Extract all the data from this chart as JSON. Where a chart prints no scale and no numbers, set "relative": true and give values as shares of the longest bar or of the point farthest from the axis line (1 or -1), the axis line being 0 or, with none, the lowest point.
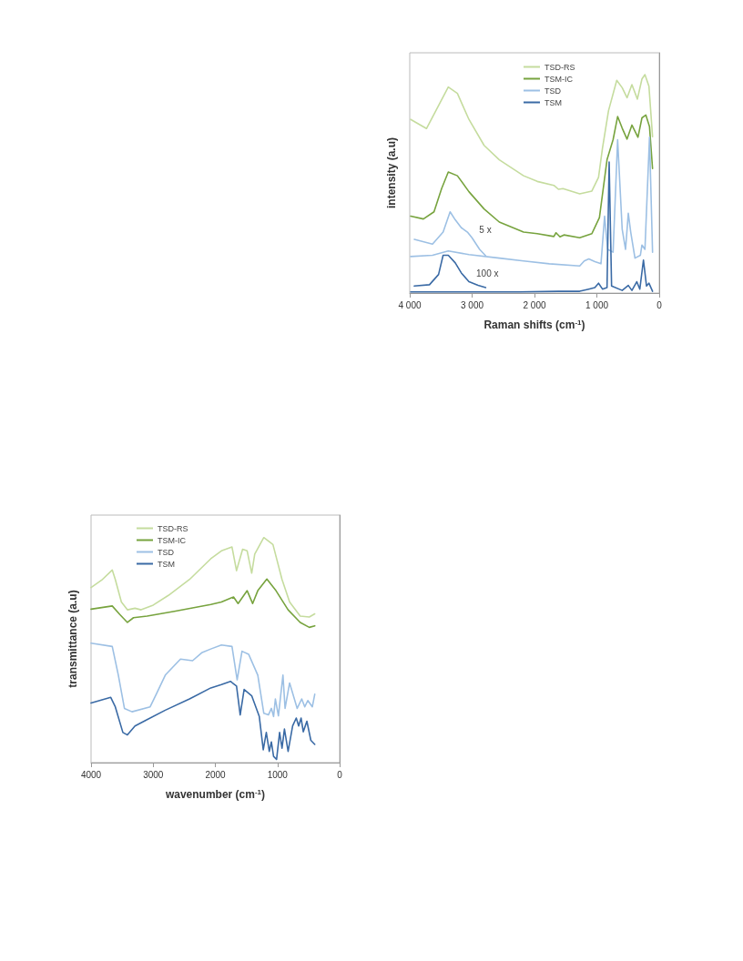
{
  "chart_data": [
    {
      "type": "line",
      "relative": true,
      "xlabel": "Raman shifts (cm$^{-1}$)",
      "ylabel": "intensity (a.u)",
      "xlim": [
        4000,
        0
      ],
      "xticks": [
        {
          "value": 4000,
          "label": "4 000"
        },
        {
          "value": 3000,
          "label": "3 000"
        },
        {
          "value": 2000,
          "label": "2 000"
        },
        {
          "value": 1000,
          "label": "1 000"
        },
        0
      ],
      "legend": "top",
      "marker": "none",
      "line_style": "solid",
      "annotations": [
        "5 x",
        "100 x"
      ],
      "series": [
        {
          "name": "TSD-RS",
          "color": "#c5dc9e",
          "x": [
            3985,
            3732,
            3382,
            3236,
            3051,
            2808,
            2564,
            2175,
            1956,
            1689,
            1616,
            1543,
            1275,
            1080,
            973,
            910,
            813,
            681,
            594,
            516,
            438,
            350,
            277,
            229,
            165,
            107
          ],
          "values": [
            0.795,
            0.753,
            0.943,
            0.914,
            0.795,
            0.676,
            0.61,
            0.537,
            0.511,
            0.493,
            0.475,
            0.478,
            0.454,
            0.467,
            0.53,
            0.663,
            0.835,
            0.974,
            0.94,
            0.894,
            0.954,
            0.888,
            0.98,
            1.0,
            0.947,
            0.716
          ]
        },
        {
          "name": "TSM-IC",
          "color": "#77a33e",
          "x": [
            3985,
            3781,
            3611,
            3489,
            3382,
            3236,
            3051,
            2808,
            2564,
            2175,
            1956,
            1689,
            1655,
            1591,
            1528,
            1275,
            1080,
            959,
            837,
            740,
            667,
            594,
            516,
            438,
            341,
            277,
            214,
            156,
            107
          ],
          "values": [
            0.352,
            0.339,
            0.372,
            0.478,
            0.554,
            0.537,
            0.464,
            0.385,
            0.325,
            0.279,
            0.272,
            0.259,
            0.276,
            0.257,
            0.266,
            0.253,
            0.272,
            0.345,
            0.61,
            0.702,
            0.808,
            0.755,
            0.705,
            0.769,
            0.713,
            0.802,
            0.815,
            0.762,
            0.57
          ]
        },
        {
          "name": "TSD",
          "color": "#9dc0e4",
          "x": [
            3985,
            3635,
            3382,
            3051,
            2564,
            2175,
            1762,
            1275,
            1202,
            1129,
            1032,
            934,
            876,
            827,
            740,
            667,
            594,
            540,
            496,
            457,
            389,
            302,
            277,
            229,
            156,
            107
          ],
          "values": [
            0.167,
            0.173,
            0.193,
            0.176,
            0.16,
            0.147,
            0.134,
            0.124,
            0.147,
            0.156,
            0.144,
            0.134,
            0.352,
            0.2,
            0.187,
            0.702,
            0.292,
            0.2,
            0.365,
            0.279,
            0.16,
            0.173,
            0.22,
            0.2,
            0.713,
            0.187
          ]
        },
        {
          "color": "#9dc0e4",
          "x": [
            3927,
            3635,
            3465,
            3353,
            3270,
            3173,
            3075,
            3002,
            2880,
            2783
          ],
          "values": [
            0.246,
            0.224,
            0.279,
            0.372,
            0.335,
            0.299,
            0.279,
            0.253,
            0.2,
            0.171
          ]
        },
        {
          "name": "TSM",
          "color": "#3a6aa5",
          "x": [
            3985,
            2248,
            1616,
            1275,
            1129,
            1032,
            973,
            910,
            837,
            803,
            764,
            594,
            496,
            438,
            360,
            311,
            253,
            204,
            165,
            107
          ],
          "values": [
            0.005,
            0.005,
            0.008,
            0.008,
            0.018,
            0.025,
            0.045,
            0.018,
            0.025,
            0.6,
            0.032,
            0.012,
            0.035,
            0.012,
            0.052,
            0.018,
            0.151,
            0.032,
            0.045,
            0.008
          ]
        },
        {
          "color": "#3a6aa5",
          "x": [
            3927,
            3684,
            3538,
            3465,
            3382,
            3270,
            3173,
            3051,
            2905,
            2783
          ],
          "values": [
            0.032,
            0.038,
            0.085,
            0.173,
            0.173,
            0.138,
            0.092,
            0.052,
            0.035,
            0.025
          ]
        }
      ]
    },
    {
      "type": "line",
      "relative": true,
      "xlabel": "wavenumber (cm$^{-1}$)",
      "ylabel": "transmittance (a.u)",
      "xlim": [
        4000,
        0
      ],
      "xticks": [
        4000,
        3000,
        2000,
        1000,
        0
      ],
      "legend": "top left",
      "marker": "none",
      "line_style": "solid",
      "series": [
        {
          "name": "TSD-RS",
          "color": "#c5dc9e",
          "x": [
            4000,
            3829,
            3659,
            3610,
            3512,
            3415,
            3293,
            3195,
            3000,
            2756,
            2415,
            2073,
            1902,
            1732,
            1659,
            1561,
            1488,
            1415,
            1366,
            1220,
            1073,
            927,
            805,
            634,
            488,
            400
          ],
          "values": [
            0.778,
            0.811,
            0.856,
            0.814,
            0.714,
            0.679,
            0.686,
            0.679,
            0.7,
            0.743,
            0.814,
            0.906,
            0.941,
            0.958,
            0.853,
            0.948,
            0.941,
            0.842,
            0.927,
            1.0,
            0.969,
            0.814,
            0.714,
            0.651,
            0.647,
            0.661
          ]
        },
        {
          "name": "TSM-IC",
          "color": "#77a33e",
          "x": [
            4000,
            3659,
            3537,
            3415,
            3317,
            3098,
            2659,
            2073,
            1902,
            1707,
            1634,
            1488,
            1400,
            1317,
            1171,
            1024,
            829,
            634,
            488,
            400
          ],
          "values": [
            0.682,
            0.696,
            0.658,
            0.623,
            0.644,
            0.651,
            0.672,
            0.703,
            0.714,
            0.736,
            0.707,
            0.764,
            0.707,
            0.764,
            0.816,
            0.764,
            0.679,
            0.623,
            0.601,
            0.608
          ]
        },
        {
          "name": "TSD",
          "color": "#9dc0e4",
          "x": [
            4000,
            3659,
            3561,
            3463,
            3341,
            3049,
            2951,
            2805,
            2561,
            2366,
            2220,
            2073,
            1902,
            1732,
            1649,
            1571,
            1463,
            1317,
            1220,
            1146,
            1098,
            1063,
            1034,
            985,
            912,
            878,
            805,
            683,
            610,
            561,
            512,
            439,
            400
          ],
          "values": [
            0.531,
            0.516,
            0.389,
            0.241,
            0.226,
            0.248,
            0.304,
            0.389,
            0.46,
            0.453,
            0.488,
            0.505,
            0.523,
            0.516,
            0.368,
            0.495,
            0.481,
            0.389,
            0.219,
            0.212,
            0.241,
            0.205,
            0.283,
            0.208,
            0.389,
            0.241,
            0.354,
            0.241,
            0.283,
            0.248,
            0.276,
            0.248,
            0.304
          ]
        },
        {
          "name": "TSM",
          "color": "#3a6aa5",
          "x": [
            4000,
            3683,
            3610,
            3488,
            3415,
            3293,
            3098,
            2805,
            2415,
            2073,
            1902,
            1756,
            1659,
            1600,
            1537,
            1415,
            1293,
            1229,
            1180,
            1132,
            1098,
            1063,
            1015,
            966,
            927,
            888,
            829,
            756,
            698,
            659,
            620,
            585,
            527,
            463,
            400
          ],
          "values": [
            0.265,
            0.29,
            0.248,
            0.134,
            0.123,
            0.163,
            0.191,
            0.233,
            0.283,
            0.332,
            0.347,
            0.361,
            0.34,
            0.212,
            0.325,
            0.297,
            0.205,
            0.057,
            0.134,
            0.05,
            0.092,
            0.028,
            0.014,
            0.134,
            0.064,
            0.149,
            0.05,
            0.163,
            0.198,
            0.163,
            0.198,
            0.137,
            0.184,
            0.099,
            0.081
          ]
        }
      ]
    }
  ]
}
